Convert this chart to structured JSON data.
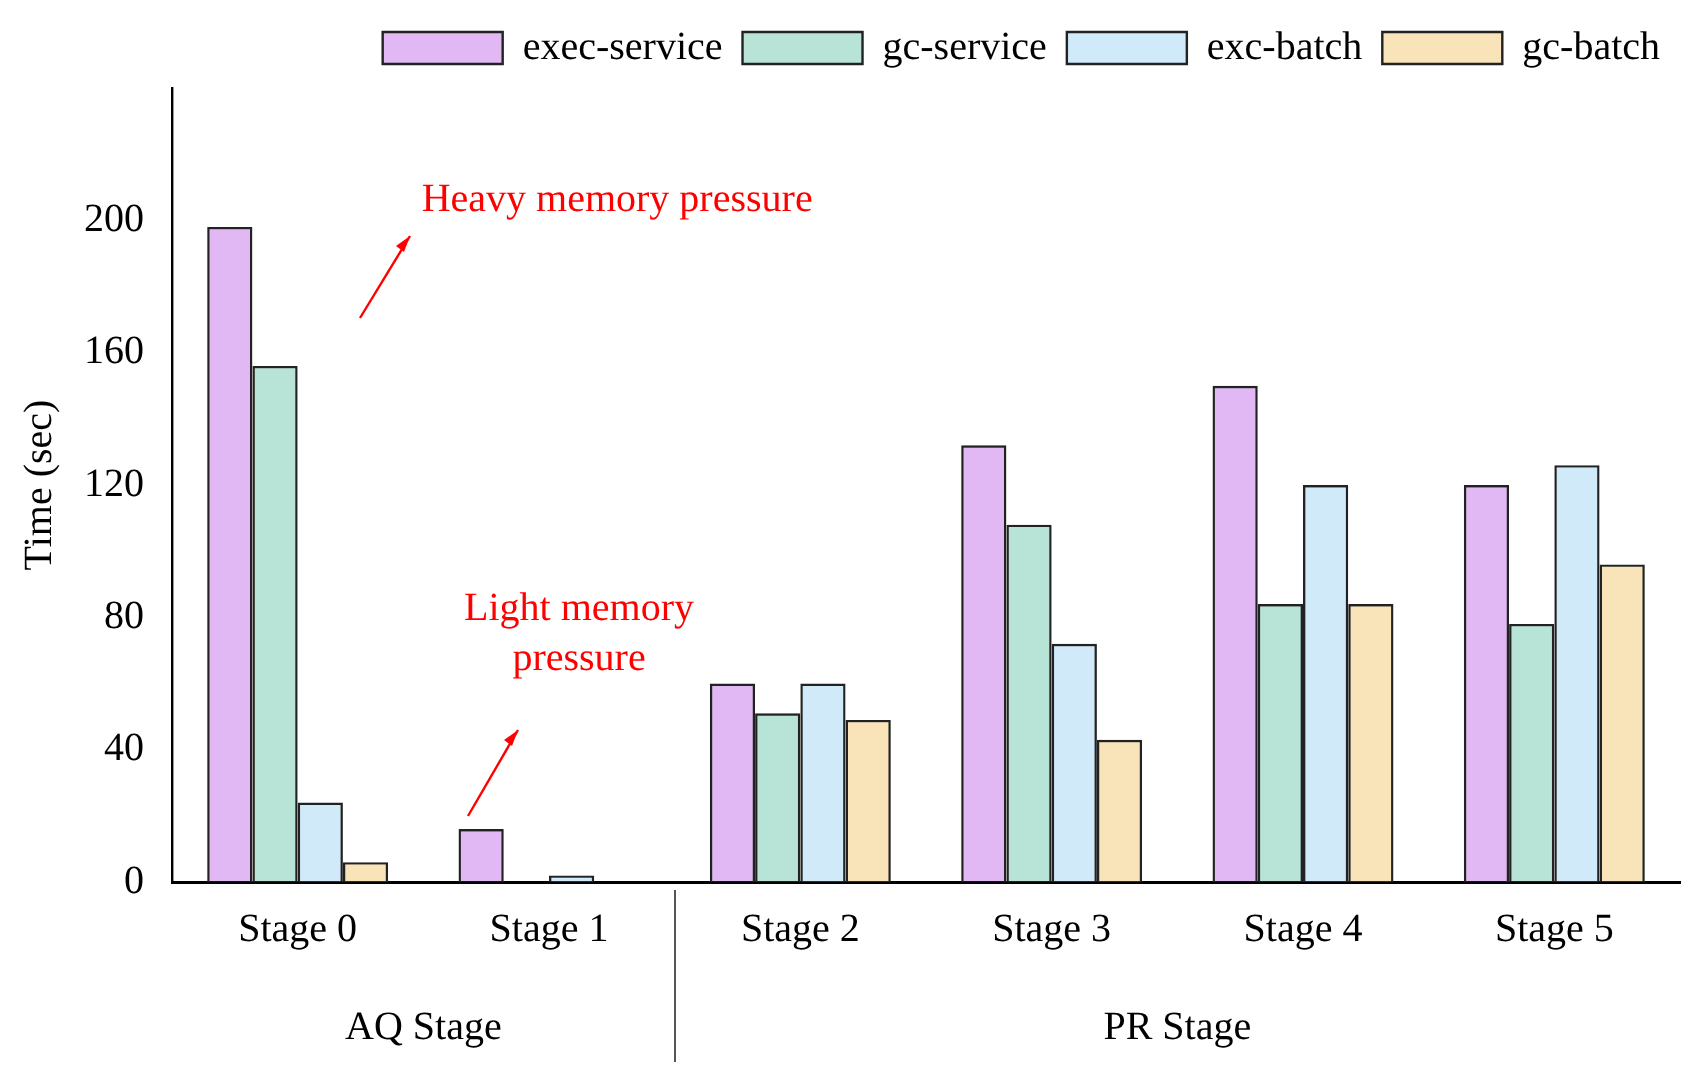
{
  "chart_data": {
    "type": "bar",
    "ylabel": "Time (sec)",
    "categories": [
      "Stage 0",
      "Stage 1",
      "Stage 2",
      "Stage 3",
      "Stage 4",
      "Stage 5"
    ],
    "series": [
      {
        "name": "exec-service",
        "color": "#9400d3",
        "values": [
          198,
          16,
          60,
          132,
          150,
          120
        ]
      },
      {
        "name": "gc-service",
        "color": "#009e73",
        "values": [
          156,
          0,
          51,
          108,
          84,
          78
        ]
      },
      {
        "name": "exc-batch",
        "color": "#56b4e9",
        "values": [
          24,
          2,
          60,
          72,
          120,
          126
        ]
      },
      {
        "name": "gc-batch",
        "color": "#e69f00",
        "values": [
          6,
          0,
          49,
          43,
          84,
          96
        ]
      }
    ],
    "ylim": [
      0,
      240
    ],
    "yticks": [
      0,
      40,
      80,
      120,
      160,
      200
    ],
    "grid": false,
    "legend": "top right",
    "annotations": [
      "Heavy memory pressure",
      "Light memory pressure",
      "AQ Stage",
      "PR Stage"
    ]
  }
}
